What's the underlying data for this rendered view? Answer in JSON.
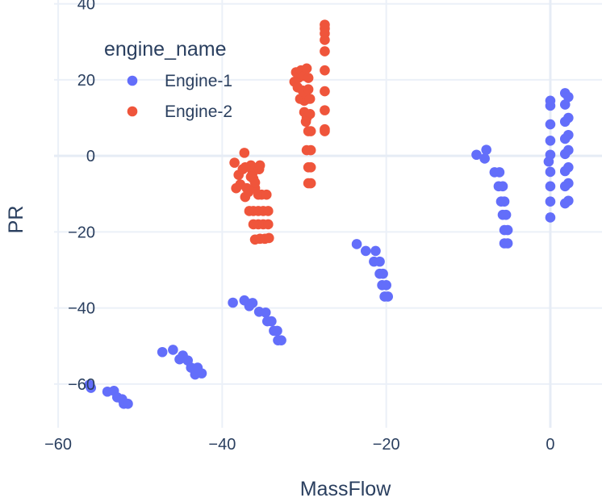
{
  "chart_data": {
    "type": "scatter",
    "title": "",
    "xlabel": "MassFlow",
    "ylabel": "PR",
    "xlim": [
      -60.5,
      6.3
    ],
    "ylim": [
      -71.5,
      41
    ],
    "xticks": [
      -60,
      -40,
      -20,
      0
    ],
    "yticks": [
      -60,
      -40,
      -20,
      0,
      20,
      40
    ],
    "xtick_labels": [
      "−60",
      "−40",
      "−20",
      "0"
    ],
    "ytick_labels": [
      "−60",
      "−40",
      "−20",
      "0",
      "20",
      "40"
    ],
    "grid": true,
    "legend": {
      "title": "engine_name",
      "position": "top-left"
    },
    "series": [
      {
        "name": "Engine-1",
        "color": "#636efa",
        "points": [
          [
            -56.2,
            -60.2
          ],
          [
            -56,
            -61
          ],
          [
            -54,
            -62
          ],
          [
            -53.2,
            -61.8
          ],
          [
            -52.8,
            -63.5
          ],
          [
            -52.2,
            -64
          ],
          [
            -52,
            -65.2
          ],
          [
            -51.5,
            -65.2
          ],
          [
            -47.3,
            -51.6
          ],
          [
            -46,
            -51
          ],
          [
            -45.2,
            -53.5
          ],
          [
            -44.8,
            -52.5
          ],
          [
            -44.2,
            -53.8
          ],
          [
            -43.8,
            -55.7
          ],
          [
            -43.3,
            -57.5
          ],
          [
            -43,
            -55.7
          ],
          [
            -42.5,
            -57.2
          ],
          [
            -38.7,
            -38.6
          ],
          [
            -37.3,
            -38
          ],
          [
            -36.7,
            -39.5
          ],
          [
            -36.3,
            -38.7
          ],
          [
            -35.5,
            -41
          ],
          [
            -34.7,
            -41.2
          ],
          [
            -34.5,
            -43.5
          ],
          [
            -34,
            -43.5
          ],
          [
            -33.7,
            -46
          ],
          [
            -33.3,
            -46
          ],
          [
            -33.2,
            -48.5
          ],
          [
            -32.8,
            -48.5
          ],
          [
            -23.6,
            -23.2
          ],
          [
            -22.5,
            -25
          ],
          [
            -21.3,
            -25
          ],
          [
            -21.5,
            -27.8
          ],
          [
            -20.8,
            -27.8
          ],
          [
            -20.8,
            -31
          ],
          [
            -20.4,
            -31
          ],
          [
            -20.5,
            -34
          ],
          [
            -20,
            -34
          ],
          [
            -20.2,
            -37
          ],
          [
            -19.8,
            -37
          ],
          [
            -9,
            0.3
          ],
          [
            -8,
            -0.7
          ],
          [
            -7.8,
            1.6
          ],
          [
            -6.8,
            -4.3
          ],
          [
            -6.2,
            -4.3
          ],
          [
            -6.3,
            -8
          ],
          [
            -5.8,
            -8
          ],
          [
            -6,
            -12
          ],
          [
            -5.6,
            -12
          ],
          [
            -5.8,
            -15.5
          ],
          [
            -5.4,
            -15.5
          ],
          [
            -5.6,
            -19.5
          ],
          [
            -5.2,
            -19.5
          ],
          [
            -5.6,
            -23
          ],
          [
            -5.2,
            -23
          ],
          [
            0,
            14.5
          ],
          [
            0,
            13.2
          ],
          [
            0,
            8.3
          ],
          [
            0,
            4
          ],
          [
            0,
            0.3
          ],
          [
            -0.2,
            -1.5
          ],
          [
            0,
            -4.2
          ],
          [
            0,
            -8
          ],
          [
            0,
            -12
          ],
          [
            0,
            -16.2
          ],
          [
            1.8,
            16.5
          ],
          [
            2.2,
            15.5
          ],
          [
            1.8,
            13.5
          ],
          [
            2.2,
            10
          ],
          [
            1.8,
            9
          ],
          [
            2.2,
            5.5
          ],
          [
            1.8,
            4.5
          ],
          [
            2.2,
            1.5
          ],
          [
            1.8,
            0.5
          ],
          [
            2.2,
            -3
          ],
          [
            1.8,
            -4
          ],
          [
            2.2,
            -7.2
          ],
          [
            1.8,
            -8
          ],
          [
            2.2,
            -11.8
          ],
          [
            1.8,
            -12.5
          ]
        ]
      },
      {
        "name": "Engine-2",
        "color": "#ef553b",
        "points": [
          [
            -38.5,
            -1.8
          ],
          [
            -37.3,
            0.8
          ],
          [
            -38,
            -5
          ],
          [
            -37.5,
            -3.5
          ],
          [
            -38.3,
            -8.5
          ],
          [
            -37.8,
            -7.5
          ],
          [
            -37.2,
            -10.8
          ],
          [
            -36.5,
            -2.5
          ],
          [
            -36.3,
            -4.5
          ],
          [
            -36.2,
            -6
          ],
          [
            -37,
            -8.5
          ],
          [
            -36.8,
            -9.5
          ],
          [
            -36,
            -8.5
          ],
          [
            -35.6,
            -10.2
          ],
          [
            -35.2,
            -10.2
          ],
          [
            -34.6,
            -10.2
          ],
          [
            -36.7,
            -14.5
          ],
          [
            -36.2,
            -14.5
          ],
          [
            -35.6,
            -14.5
          ],
          [
            -35,
            -14.5
          ],
          [
            -34.4,
            -14.5
          ],
          [
            -36.2,
            -18
          ],
          [
            -35.6,
            -18
          ],
          [
            -35,
            -18
          ],
          [
            -34.4,
            -18
          ],
          [
            -36,
            -22
          ],
          [
            -35.4,
            -21.8
          ],
          [
            -34.8,
            -21.8
          ],
          [
            -34.3,
            -21.6
          ],
          [
            -36.5,
            -5.5
          ],
          [
            -36,
            -7
          ],
          [
            -35.5,
            -3.5
          ],
          [
            -35.4,
            -2.5
          ],
          [
            -37.2,
            -3
          ],
          [
            -31,
            22
          ],
          [
            -30.7,
            20.5
          ],
          [
            -30.4,
            22.5
          ],
          [
            -30,
            21
          ],
          [
            -29.7,
            23
          ],
          [
            -29.5,
            20.5
          ],
          [
            -31.2,
            19.5
          ],
          [
            -30.8,
            18
          ],
          [
            -30.2,
            17.2
          ],
          [
            -29.5,
            17.5
          ],
          [
            -30.5,
            15
          ],
          [
            -30,
            14.5
          ],
          [
            -29.6,
            15
          ],
          [
            -29.3,
            15
          ],
          [
            -30,
            11.5
          ],
          [
            -29.7,
            10
          ],
          [
            -29.3,
            11
          ],
          [
            -29.8,
            9
          ],
          [
            -29.5,
            6.5
          ],
          [
            -29.2,
            6.5
          ],
          [
            -29.7,
            1.5
          ],
          [
            -29.2,
            1.5
          ],
          [
            -29.5,
            -3
          ],
          [
            -29.2,
            -3
          ],
          [
            -29.5,
            -7.2
          ],
          [
            -29.2,
            -7.2
          ],
          [
            -27.5,
            34.5
          ],
          [
            -27.5,
            33.5
          ],
          [
            -27.5,
            32.2
          ],
          [
            -27.5,
            30.5
          ],
          [
            -27.5,
            27.5
          ],
          [
            -27.5,
            22.5
          ],
          [
            -27.5,
            17
          ],
          [
            -27.5,
            12
          ],
          [
            -27.5,
            7
          ],
          [
            -27.5,
            6.5
          ]
        ]
      }
    ]
  }
}
